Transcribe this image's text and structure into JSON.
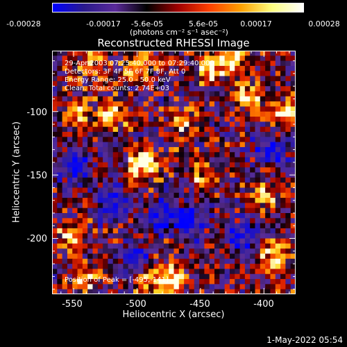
{
  "colorbar": {
    "tick_labels": [
      "-0.00028",
      "-0.00017",
      "-5.6e-05",
      "5.6e-05",
      "0.00017",
      "0.00028"
    ],
    "units": "(photons cm⁻² s⁻¹ asec⁻²)",
    "range": [
      -0.00028,
      0.00028
    ],
    "colors": [
      "#0000ff",
      "#2a1a8c",
      "#5a2a9a",
      "#000000",
      "#a00000",
      "#ff4000",
      "#ffa000",
      "#ffff80",
      "#ffffff"
    ]
  },
  "info": {
    "time_range": "29-Apr-2003 07:25:40.000 to 07:29:40.000",
    "detectors": "Detectors: 3F 4F 5F 6F 7F 8F, Att 0",
    "energy_range": "Energy Range: 25.0 - 50.0 keV",
    "clean_counts": "Clean.   Total counts: 2.74E+03",
    "peak_position": "Position of Peak = [-495,-141]"
  },
  "footer": {
    "timestamp": "1-May-2022 05:54"
  },
  "chart_data": {
    "type": "heatmap",
    "title": "Reconstructed RHESSI Image",
    "xlabel": "Heliocentric X (arcsec)",
    "ylabel": "Heliocentric Y (arcsec)",
    "xlim": [
      -567,
      -375
    ],
    "ylim": [
      -244,
      -52
    ],
    "x_ticks": [
      -550,
      -500,
      -450,
      -400
    ],
    "y_ticks": [
      -100,
      -150,
      -200
    ],
    "peak": [
      -495,
      -141
    ],
    "hot_spots": [
      {
        "x": -495,
        "y": -141,
        "intensity": 1.0
      },
      {
        "x": -383,
        "y": -101,
        "intensity": 0.9
      },
      {
        "x": -497,
        "y": -62,
        "intensity": 0.75
      },
      {
        "x": -442,
        "y": -64,
        "intensity": 0.7
      },
      {
        "x": -520,
        "y": -102,
        "intensity": 0.7
      },
      {
        "x": -392,
        "y": -213,
        "intensity": 0.75
      },
      {
        "x": -490,
        "y": -228,
        "intensity": 0.7
      },
      {
        "x": -470,
        "y": -232,
        "intensity": 0.65
      },
      {
        "x": -540,
        "y": -232,
        "intensity": 0.6
      },
      {
        "x": -552,
        "y": -200,
        "intensity": 0.55
      },
      {
        "x": -411,
        "y": -88,
        "intensity": 0.6
      },
      {
        "x": -399,
        "y": -166,
        "intensity": 0.55
      },
      {
        "x": -546,
        "y": -100,
        "intensity": 0.5
      },
      {
        "x": -535,
        "y": -62,
        "intensity": 0.55
      },
      {
        "x": -460,
        "y": -112,
        "intensity": 0.5
      },
      {
        "x": -447,
        "y": -151,
        "intensity": 0.45
      },
      {
        "x": -423,
        "y": -56,
        "intensity": 0.6
      }
    ],
    "cold_spots": [
      {
        "x": -550,
        "y": -142
      },
      {
        "x": -520,
        "y": -172
      },
      {
        "x": -480,
        "y": -182
      },
      {
        "x": -416,
        "y": -200
      },
      {
        "x": -395,
        "y": -130
      },
      {
        "x": -457,
        "y": -186
      },
      {
        "x": -501,
        "y": -218
      }
    ]
  }
}
